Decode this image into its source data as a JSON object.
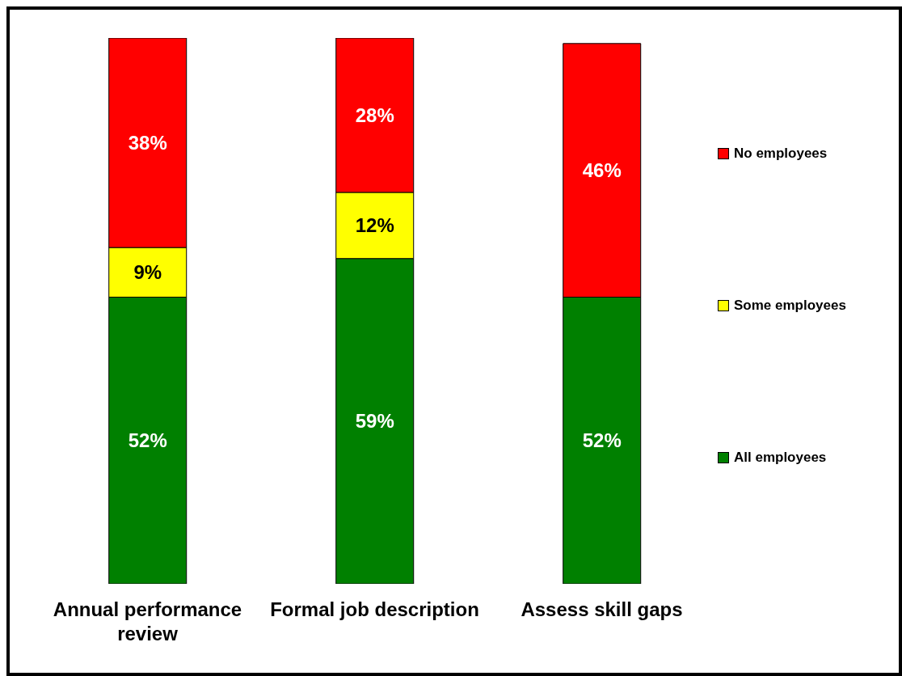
{
  "chart_data": {
    "type": "bar",
    "stacked": true,
    "categories": [
      "Annual performance review",
      "Formal job description",
      "Assess skill gaps"
    ],
    "ylim": [
      0,
      99
    ],
    "tick_labels": "x",
    "legend": "right",
    "series": [
      {
        "name": "All employees",
        "color": "#008000",
        "values": [
          52,
          59,
          52
        ],
        "value_labels": [
          "52%",
          "59%",
          "52%"
        ]
      },
      {
        "name": "Some employees",
        "color": "#ffff00",
        "values": [
          9,
          12,
          null
        ],
        "value_labels": [
          "9%",
          "12%",
          null
        ]
      },
      {
        "name": "No employees",
        "color": "#ff0000",
        "values": [
          38,
          28,
          46
        ],
        "value_labels": [
          "38%",
          "28%",
          "46%"
        ]
      }
    ]
  }
}
